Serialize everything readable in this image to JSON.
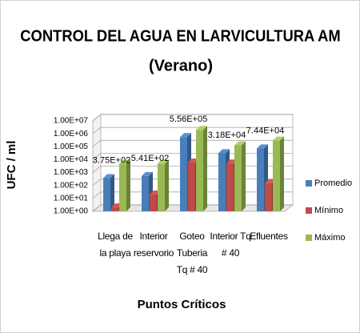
{
  "chart_data": {
    "type": "bar",
    "title": "CONTROL DEL AGUA EN LARVICULTURA AM",
    "subtitle": "(Verano)",
    "x_label": "Puntos Críticos",
    "y_label": "UFC / ml",
    "categories": [
      "Llega de la playa",
      "Interior reservorio",
      "Goteo Tuberia Tq # 40",
      "Interior Tq # 40",
      "Efluentes"
    ],
    "series": [
      {
        "name": "Promedio",
        "color": "#4a7ebb",
        "values": [
          375,
          541,
          556000,
          31800,
          74400
        ],
        "value_labels": [
          "3.75E+02",
          "5.41E+02",
          "5.56E+05",
          "3.18E+04",
          "7.44E+04"
        ]
      },
      {
        "name": "Mínimo",
        "color": "#be4b48",
        "values": [
          2,
          20,
          6000,
          5000,
          150
        ]
      },
      {
        "name": "Máximo",
        "color": "#98b954",
        "values": [
          5000,
          5000,
          2000000,
          130000,
          300000
        ]
      }
    ],
    "log_scale": true,
    "ylim": [
      1,
      10000000
    ],
    "yticks": [
      {
        "value": 1,
        "label": "1.00E+00"
      },
      {
        "value": 10,
        "label": "1.00E+01"
      },
      {
        "value": 100,
        "label": "1.00E+02"
      },
      {
        "value": 1000,
        "label": "1.00E+03"
      },
      {
        "value": 10000,
        "label": "1.00E+04"
      },
      {
        "value": 100000,
        "label": "1.00E+05"
      },
      {
        "value": 1000000,
        "label": "1.00E+06"
      },
      {
        "value": 10000000,
        "label": "1.00E+07"
      }
    ],
    "grid": true,
    "legend": "right"
  }
}
